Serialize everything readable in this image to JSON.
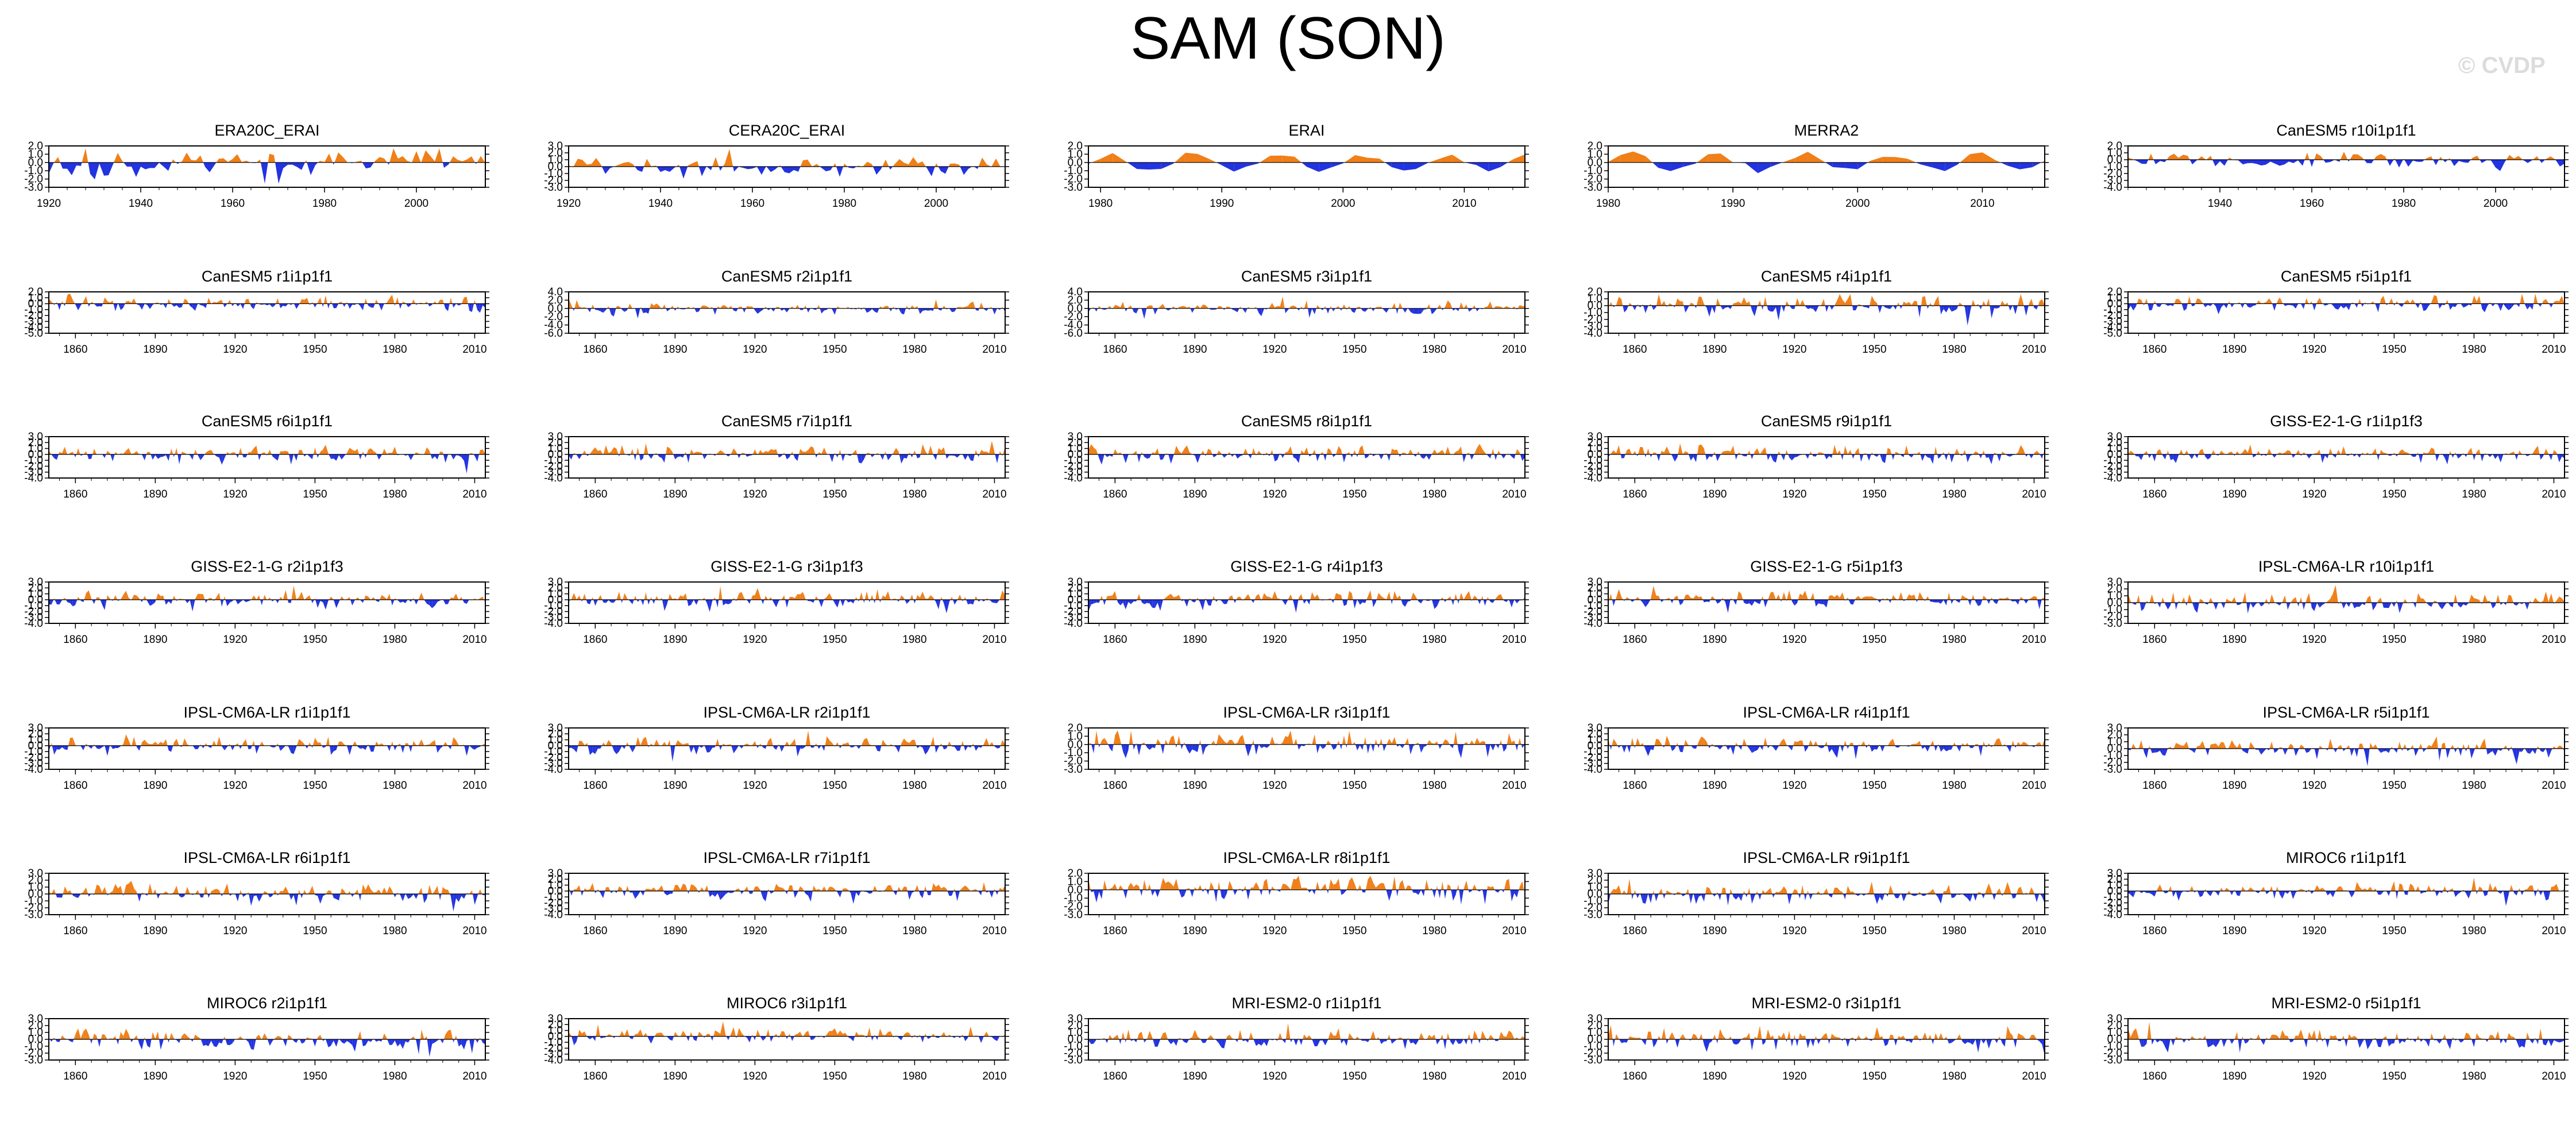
{
  "title": "SAM (SON)",
  "watermark": "© CVDP",
  "colors": {
    "positive": "#f07f18",
    "negative": "#2233e0",
    "axis": "#000000"
  },
  "chart_data": [
    {
      "type": "area",
      "title": "ERA20C_ERAI",
      "x_range": [
        1920,
        2015
      ],
      "x_ticks": [
        1920,
        1940,
        1960,
        1980,
        2000
      ],
      "y_ticks": [
        2.0,
        1.0,
        0.0,
        -1.0,
        -2.0,
        -3.0
      ],
      "ylim": [
        -3.0,
        2.0
      ],
      "pattern": "era20c",
      "seed": 11
    },
    {
      "type": "area",
      "title": "CERA20C_ERAI",
      "x_range": [
        1920,
        2015
      ],
      "x_ticks": [
        1920,
        1940,
        1960,
        1980,
        2000
      ],
      "y_ticks": [
        3.0,
        2.0,
        1.0,
        0.0,
        -1.0,
        -2.0,
        -3.0
      ],
      "ylim": [
        -3.0,
        3.0
      ],
      "pattern": "cera20c",
      "seed": 12
    },
    {
      "type": "area",
      "title": "ERAI",
      "x_range": [
        1979,
        2015
      ],
      "x_ticks": [
        1980,
        1990,
        2000,
        2010
      ],
      "y_ticks": [
        2.0,
        1.0,
        0.0,
        -1.0,
        -2.0,
        -3.0
      ],
      "ylim": [
        -3.0,
        2.0
      ],
      "pattern": "short",
      "seed": 13
    },
    {
      "type": "area",
      "title": "MERRA2",
      "x_range": [
        1980,
        2015
      ],
      "x_ticks": [
        1980,
        1990,
        2000,
        2010
      ],
      "y_ticks": [
        2.0,
        1.0,
        0.0,
        -1.0,
        -2.0,
        -3.0
      ],
      "ylim": [
        -3.0,
        2.0
      ],
      "pattern": "short",
      "seed": 14
    },
    {
      "type": "area",
      "title": "CanESM5 r10i1p1f1",
      "x_range": [
        1920,
        2015
      ],
      "x_ticks": [
        1940,
        1960,
        1980,
        2000
      ],
      "y_ticks": [
        2.0,
        1.0,
        0.0,
        -1.0,
        -2.0,
        -3.0,
        -4.0
      ],
      "ylim": [
        -4.0,
        2.0
      ],
      "pattern": "model",
      "seed": 15
    },
    {
      "type": "area",
      "title": "CanESM5 r1i1p1f1",
      "x_range": [
        1850,
        2014
      ],
      "x_ticks": [
        1860,
        1890,
        1920,
        1950,
        1980,
        2010
      ],
      "y_ticks": [
        2.0,
        1.0,
        0.0,
        -1.0,
        -2.0,
        -3.0,
        -4.0,
        -5.0
      ],
      "ylim": [
        -5.0,
        2.0
      ],
      "pattern": "model",
      "seed": 21
    },
    {
      "type": "area",
      "title": "CanESM5 r2i1p1f1",
      "x_range": [
        1850,
        2014
      ],
      "x_ticks": [
        1860,
        1890,
        1920,
        1950,
        1980,
        2010
      ],
      "y_ticks": [
        4.0,
        2.0,
        0.0,
        -2.0,
        -4.0,
        -6.0
      ],
      "ylim": [
        -6.0,
        4.0
      ],
      "pattern": "model",
      "seed": 22
    },
    {
      "type": "area",
      "title": "CanESM5 r3i1p1f1",
      "x_range": [
        1850,
        2014
      ],
      "x_ticks": [
        1860,
        1890,
        1920,
        1950,
        1980,
        2010
      ],
      "y_ticks": [
        4.0,
        2.0,
        0.0,
        -2.0,
        -4.0,
        -6.0
      ],
      "ylim": [
        -6.0,
        4.0
      ],
      "pattern": "model",
      "seed": 23
    },
    {
      "type": "area",
      "title": "CanESM5 r4i1p1f1",
      "x_range": [
        1850,
        2014
      ],
      "x_ticks": [
        1860,
        1890,
        1920,
        1950,
        1980,
        2010
      ],
      "y_ticks": [
        2.0,
        1.0,
        0.0,
        -1.0,
        -2.0,
        -3.0,
        -4.0
      ],
      "ylim": [
        -4.0,
        2.0
      ],
      "pattern": "model",
      "seed": 24
    },
    {
      "type": "area",
      "title": "CanESM5 r5i1p1f1",
      "x_range": [
        1850,
        2014
      ],
      "x_ticks": [
        1860,
        1890,
        1920,
        1950,
        1980,
        2010
      ],
      "y_ticks": [
        2.0,
        1.0,
        0.0,
        -1.0,
        -2.0,
        -3.0,
        -4.0,
        -5.0
      ],
      "ylim": [
        -5.0,
        2.0
      ],
      "pattern": "model",
      "seed": 25
    },
    {
      "type": "area",
      "title": "CanESM5 r6i1p1f1",
      "x_range": [
        1850,
        2014
      ],
      "x_ticks": [
        1860,
        1890,
        1920,
        1950,
        1980,
        2010
      ],
      "y_ticks": [
        3.0,
        2.0,
        1.0,
        0.0,
        -1.0,
        -2.0,
        -3.0,
        -4.0
      ],
      "ylim": [
        -4.0,
        3.0
      ],
      "pattern": "model",
      "seed": 31
    },
    {
      "type": "area",
      "title": "CanESM5 r7i1p1f1",
      "x_range": [
        1850,
        2014
      ],
      "x_ticks": [
        1860,
        1890,
        1920,
        1950,
        1980,
        2010
      ],
      "y_ticks": [
        3.0,
        2.0,
        1.0,
        0.0,
        -1.0,
        -2.0,
        -3.0,
        -4.0
      ],
      "ylim": [
        -4.0,
        3.0
      ],
      "pattern": "model",
      "seed": 32
    },
    {
      "type": "area",
      "title": "CanESM5 r8i1p1f1",
      "x_range": [
        1850,
        2014
      ],
      "x_ticks": [
        1860,
        1890,
        1920,
        1950,
        1980,
        2010
      ],
      "y_ticks": [
        3.0,
        2.0,
        1.0,
        0.0,
        -1.0,
        -2.0,
        -3.0,
        -4.0
      ],
      "ylim": [
        -4.0,
        3.0
      ],
      "pattern": "model",
      "seed": 33
    },
    {
      "type": "area",
      "title": "CanESM5 r9i1p1f1",
      "x_range": [
        1850,
        2014
      ],
      "x_ticks": [
        1860,
        1890,
        1920,
        1950,
        1980,
        2010
      ],
      "y_ticks": [
        3.0,
        2.0,
        1.0,
        0.0,
        -1.0,
        -2.0,
        -3.0,
        -4.0
      ],
      "ylim": [
        -4.0,
        3.0
      ],
      "pattern": "model",
      "seed": 34
    },
    {
      "type": "area",
      "title": "GISS-E2-1-G r1i1p1f3",
      "x_range": [
        1850,
        2014
      ],
      "x_ticks": [
        1860,
        1890,
        1920,
        1950,
        1980,
        2010
      ],
      "y_ticks": [
        3.0,
        2.0,
        1.0,
        0.0,
        -1.0,
        -2.0,
        -3.0,
        -4.0
      ],
      "ylim": [
        -4.0,
        3.0
      ],
      "pattern": "model",
      "seed": 35
    },
    {
      "type": "area",
      "title": "GISS-E2-1-G r2i1p1f3",
      "x_range": [
        1850,
        2014
      ],
      "x_ticks": [
        1860,
        1890,
        1920,
        1950,
        1980,
        2010
      ],
      "y_ticks": [
        3.0,
        2.0,
        1.0,
        0.0,
        -1.0,
        -2.0,
        -3.0,
        -4.0
      ],
      "ylim": [
        -4.0,
        3.0
      ],
      "pattern": "model",
      "seed": 41
    },
    {
      "type": "area",
      "title": "GISS-E2-1-G r3i1p1f3",
      "x_range": [
        1850,
        2014
      ],
      "x_ticks": [
        1860,
        1890,
        1920,
        1950,
        1980,
        2010
      ],
      "y_ticks": [
        3.0,
        2.0,
        1.0,
        0.0,
        -1.0,
        -2.0,
        -3.0,
        -4.0
      ],
      "ylim": [
        -4.0,
        3.0
      ],
      "pattern": "model",
      "seed": 42
    },
    {
      "type": "area",
      "title": "GISS-E2-1-G r4i1p1f3",
      "x_range": [
        1850,
        2014
      ],
      "x_ticks": [
        1860,
        1890,
        1920,
        1950,
        1980,
        2010
      ],
      "y_ticks": [
        3.0,
        2.0,
        1.0,
        0.0,
        -1.0,
        -2.0,
        -3.0,
        -4.0
      ],
      "ylim": [
        -4.0,
        3.0
      ],
      "pattern": "model",
      "seed": 43
    },
    {
      "type": "area",
      "title": "GISS-E2-1-G r5i1p1f3",
      "x_range": [
        1850,
        2014
      ],
      "x_ticks": [
        1860,
        1890,
        1920,
        1950,
        1980,
        2010
      ],
      "y_ticks": [
        3.0,
        2.0,
        1.0,
        0.0,
        -1.0,
        -2.0,
        -3.0,
        -4.0
      ],
      "ylim": [
        -4.0,
        3.0
      ],
      "pattern": "model",
      "seed": 44
    },
    {
      "type": "area",
      "title": "IPSL-CM6A-LR r10i1p1f1",
      "x_range": [
        1850,
        2014
      ],
      "x_ticks": [
        1860,
        1890,
        1920,
        1950,
        1980,
        2010
      ],
      "y_ticks": [
        3.0,
        2.0,
        1.0,
        0.0,
        -1.0,
        -2.0,
        -3.0
      ],
      "ylim": [
        -3.0,
        3.0
      ],
      "pattern": "model",
      "seed": 45
    },
    {
      "type": "area",
      "title": "IPSL-CM6A-LR r1i1p1f1",
      "x_range": [
        1850,
        2014
      ],
      "x_ticks": [
        1860,
        1890,
        1920,
        1950,
        1980,
        2010
      ],
      "y_ticks": [
        3.0,
        2.0,
        1.0,
        0.0,
        -1.0,
        -2.0,
        -3.0,
        -4.0
      ],
      "ylim": [
        -4.0,
        3.0
      ],
      "pattern": "model",
      "seed": 51
    },
    {
      "type": "area",
      "title": "IPSL-CM6A-LR r2i1p1f1",
      "x_range": [
        1850,
        2014
      ],
      "x_ticks": [
        1860,
        1890,
        1920,
        1950,
        1980,
        2010
      ],
      "y_ticks": [
        3.0,
        2.0,
        1.0,
        0.0,
        -1.0,
        -2.0,
        -3.0,
        -4.0
      ],
      "ylim": [
        -4.0,
        3.0
      ],
      "pattern": "model",
      "seed": 52
    },
    {
      "type": "area",
      "title": "IPSL-CM6A-LR r3i1p1f1",
      "x_range": [
        1850,
        2014
      ],
      "x_ticks": [
        1860,
        1890,
        1920,
        1950,
        1980,
        2010
      ],
      "y_ticks": [
        2.0,
        1.0,
        0.0,
        -1.0,
        -2.0,
        -3.0
      ],
      "ylim": [
        -3.0,
        2.0
      ],
      "pattern": "model",
      "seed": 53
    },
    {
      "type": "area",
      "title": "IPSL-CM6A-LR r4i1p1f1",
      "x_range": [
        1850,
        2014
      ],
      "x_ticks": [
        1860,
        1890,
        1920,
        1950,
        1980,
        2010
      ],
      "y_ticks": [
        3.0,
        2.0,
        1.0,
        0.0,
        -1.0,
        -2.0,
        -3.0,
        -4.0
      ],
      "ylim": [
        -4.0,
        3.0
      ],
      "pattern": "model",
      "seed": 54
    },
    {
      "type": "area",
      "title": "IPSL-CM6A-LR r5i1p1f1",
      "x_range": [
        1850,
        2014
      ],
      "x_ticks": [
        1860,
        1890,
        1920,
        1950,
        1980,
        2010
      ],
      "y_ticks": [
        3.0,
        2.0,
        1.0,
        0.0,
        -1.0,
        -2.0,
        -3.0
      ],
      "ylim": [
        -3.0,
        3.0
      ],
      "pattern": "model",
      "seed": 55
    },
    {
      "type": "area",
      "title": "IPSL-CM6A-LR r6i1p1f1",
      "x_range": [
        1850,
        2014
      ],
      "x_ticks": [
        1860,
        1890,
        1920,
        1950,
        1980,
        2010
      ],
      "y_ticks": [
        3.0,
        2.0,
        1.0,
        0.0,
        -1.0,
        -2.0,
        -3.0
      ],
      "ylim": [
        -3.0,
        3.0
      ],
      "pattern": "model",
      "seed": 61
    },
    {
      "type": "area",
      "title": "IPSL-CM6A-LR r7i1p1f1",
      "x_range": [
        1850,
        2014
      ],
      "x_ticks": [
        1860,
        1890,
        1920,
        1950,
        1980,
        2010
      ],
      "y_ticks": [
        3.0,
        2.0,
        1.0,
        0.0,
        -1.0,
        -2.0,
        -3.0,
        -4.0
      ],
      "ylim": [
        -4.0,
        3.0
      ],
      "pattern": "model",
      "seed": 62
    },
    {
      "type": "area",
      "title": "IPSL-CM6A-LR r8i1p1f1",
      "x_range": [
        1850,
        2014
      ],
      "x_ticks": [
        1860,
        1890,
        1920,
        1950,
        1980,
        2010
      ],
      "y_ticks": [
        2.0,
        1.0,
        0.0,
        -1.0,
        -2.0,
        -3.0
      ],
      "ylim": [
        -3.0,
        2.0
      ],
      "pattern": "model",
      "seed": 63
    },
    {
      "type": "area",
      "title": "IPSL-CM6A-LR r9i1p1f1",
      "x_range": [
        1850,
        2014
      ],
      "x_ticks": [
        1860,
        1890,
        1920,
        1950,
        1980,
        2010
      ],
      "y_ticks": [
        3.0,
        2.0,
        1.0,
        0.0,
        -1.0,
        -2.0,
        -3.0
      ],
      "ylim": [
        -3.0,
        3.0
      ],
      "pattern": "model",
      "seed": 64
    },
    {
      "type": "area",
      "title": "MIROC6 r1i1p1f1",
      "x_range": [
        1850,
        2014
      ],
      "x_ticks": [
        1860,
        1890,
        1920,
        1950,
        1980,
        2010
      ],
      "y_ticks": [
        3.0,
        2.0,
        1.0,
        0.0,
        -1.0,
        -2.0,
        -3.0,
        -4.0
      ],
      "ylim": [
        -4.0,
        3.0
      ],
      "pattern": "model",
      "seed": 65
    },
    {
      "type": "area",
      "title": "MIROC6 r2i1p1f1",
      "x_range": [
        1850,
        2014
      ],
      "x_ticks": [
        1860,
        1890,
        1920,
        1950,
        1980,
        2010
      ],
      "y_ticks": [
        3.0,
        2.0,
        1.0,
        0.0,
        -1.0,
        -2.0,
        -3.0
      ],
      "ylim": [
        -3.0,
        3.0
      ],
      "pattern": "model",
      "seed": 71
    },
    {
      "type": "area",
      "title": "MIROC6 r3i1p1f1",
      "x_range": [
        1850,
        2014
      ],
      "x_ticks": [
        1860,
        1890,
        1920,
        1950,
        1980,
        2010
      ],
      "y_ticks": [
        3.0,
        2.0,
        1.0,
        0.0,
        -1.0,
        -2.0,
        -3.0,
        -4.0
      ],
      "ylim": [
        -4.0,
        3.0
      ],
      "pattern": "model",
      "seed": 72
    },
    {
      "type": "area",
      "title": "MRI-ESM2-0 r1i1p1f1",
      "x_range": [
        1850,
        2014
      ],
      "x_ticks": [
        1860,
        1890,
        1920,
        1950,
        1980,
        2010
      ],
      "y_ticks": [
        3.0,
        2.0,
        1.0,
        0.0,
        -1.0,
        -2.0,
        -3.0
      ],
      "ylim": [
        -3.0,
        3.0
      ],
      "pattern": "model",
      "seed": 73
    },
    {
      "type": "area",
      "title": "MRI-ESM2-0 r3i1p1f1",
      "x_range": [
        1850,
        2014
      ],
      "x_ticks": [
        1860,
        1890,
        1920,
        1950,
        1980,
        2010
      ],
      "y_ticks": [
        3.0,
        2.0,
        1.0,
        0.0,
        -1.0,
        -2.0,
        -3.0
      ],
      "ylim": [
        -3.0,
        3.0
      ],
      "pattern": "model",
      "seed": 74
    },
    {
      "type": "area",
      "title": "MRI-ESM2-0 r5i1p1f1",
      "x_range": [
        1850,
        2014
      ],
      "x_ticks": [
        1860,
        1890,
        1920,
        1950,
        1980,
        2010
      ],
      "y_ticks": [
        3.0,
        2.0,
        1.0,
        0.0,
        -1.0,
        -2.0,
        -3.0
      ],
      "ylim": [
        -3.0,
        3.0
      ],
      "pattern": "model",
      "seed": 75
    }
  ]
}
